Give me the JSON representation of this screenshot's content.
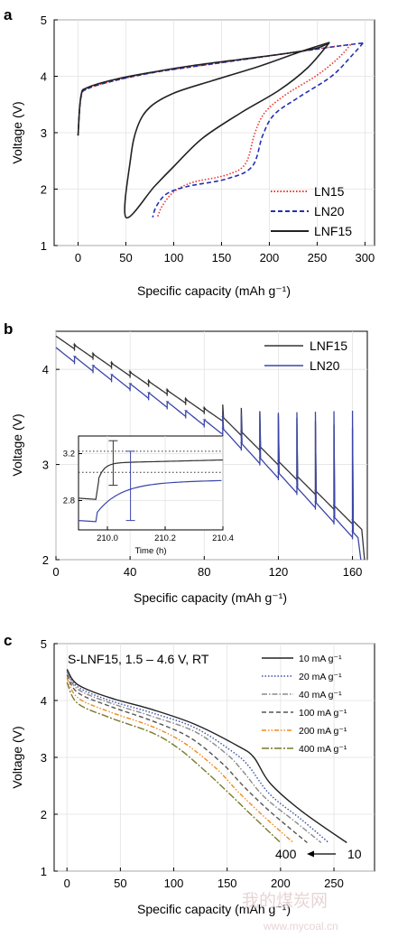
{
  "colors": {
    "LN15": "#e8342f",
    "LN20": "#2530b0",
    "LNF15": "#222222",
    "LN20_b": "#3b46a8",
    "LNF15_b": "#333333",
    "rate_10": "#222222",
    "rate_20": "#3a4fa8",
    "rate_40": "#8a8a8a",
    "rate_100": "#555555",
    "rate_200": "#f08a1d",
    "rate_400": "#7a7a2a"
  },
  "chart_data": [
    {
      "panel": "a",
      "type": "line",
      "xlabel": "Specific capacity (mAh g⁻¹)",
      "ylabel": "Voltage (V)",
      "xlim": [
        -25,
        310
      ],
      "ylim": [
        1,
        5
      ],
      "xticks": [
        "0",
        "50",
        "100",
        "150",
        "200",
        "250",
        "300"
      ],
      "yticks": [
        "1",
        "2",
        "3",
        "4",
        "5"
      ],
      "legend_position": "bottom-right",
      "series": [
        {
          "name": "LN15",
          "style": "dotted",
          "charge": [
            [
              0,
              2.95
            ],
            [
              3,
              3.62
            ],
            [
              10,
              3.78
            ],
            [
              40,
              3.93
            ],
            [
              80,
              4.07
            ],
            [
              120,
              4.17
            ],
            [
              170,
              4.29
            ],
            [
              220,
              4.41
            ],
            [
              265,
              4.52
            ],
            [
              285,
              4.56
            ]
          ],
          "discharge": [
            [
              285,
              4.56
            ],
            [
              272,
              4.32
            ],
            [
              250,
              4.02
            ],
            [
              215,
              3.65
            ],
            [
              195,
              3.35
            ],
            [
              185,
              3.0
            ],
            [
              175,
              2.45
            ],
            [
              155,
              2.25
            ],
            [
              120,
              2.12
            ],
            [
              100,
              1.95
            ],
            [
              88,
              1.7
            ],
            [
              83,
              1.5
            ]
          ]
        },
        {
          "name": "LN20",
          "style": "dashed",
          "charge": [
            [
              0,
              2.95
            ],
            [
              3,
              3.62
            ],
            [
              10,
              3.78
            ],
            [
              40,
              3.93
            ],
            [
              80,
              4.07
            ],
            [
              120,
              4.17
            ],
            [
              170,
              4.29
            ],
            [
              220,
              4.41
            ],
            [
              270,
              4.53
            ],
            [
              298,
              4.59
            ]
          ],
          "discharge": [
            [
              298,
              4.59
            ],
            [
              287,
              4.38
            ],
            [
              265,
              4.0
            ],
            [
              230,
              3.62
            ],
            [
              205,
              3.32
            ],
            [
              193,
              2.95
            ],
            [
              182,
              2.4
            ],
            [
              155,
              2.18
            ],
            [
              115,
              2.05
            ],
            [
              93,
              1.92
            ],
            [
              82,
              1.7
            ],
            [
              78,
              1.5
            ]
          ]
        },
        {
          "name": "LNF15",
          "style": "solid",
          "charge": [
            [
              0,
              2.95
            ],
            [
              3,
              3.65
            ],
            [
              10,
              3.8
            ],
            [
              40,
              3.95
            ],
            [
              80,
              4.08
            ],
            [
              120,
              4.19
            ],
            [
              170,
              4.3
            ],
            [
              220,
              4.41
            ],
            [
              250,
              4.5
            ],
            [
              263,
              4.6
            ]
          ],
          "discharge": [
            [
              263,
              4.6
            ],
            [
              235,
              4.45
            ],
            [
              190,
              4.18
            ],
            [
              140,
              3.92
            ],
            [
              100,
              3.7
            ],
            [
              75,
              3.45
            ],
            [
              62,
              3.1
            ],
            [
              55,
              2.55
            ],
            [
              50,
              1.5
            ],
            [
              80,
              2.05
            ],
            [
              100,
              2.4
            ],
            [
              130,
              2.9
            ],
            [
              170,
              3.35
            ],
            [
              210,
              3.75
            ],
            [
              240,
              4.15
            ],
            [
              263,
              4.6
            ]
          ]
        }
      ]
    },
    {
      "panel": "b",
      "type": "line",
      "xlabel": "Specific capacity (mAh g⁻¹)",
      "ylabel": "Voltage (V)",
      "xlim": [
        0,
        168
      ],
      "ylim": [
        2,
        4.4
      ],
      "xticks": [
        "0",
        "40",
        "80",
        "120",
        "160"
      ],
      "yticks": [
        "2",
        "3",
        "4"
      ],
      "legend_position": "top-right",
      "series": [
        {
          "name": "LNF15",
          "start": [
            0,
            4.35
          ],
          "relax": 0.1
        },
        {
          "name": "LN20",
          "start": [
            0,
            4.22
          ],
          "relax": 0.16
        }
      ],
      "inset": {
        "xlabel": "Time (h)",
        "xticks": [
          "210.0",
          "210.2",
          "210.4"
        ],
        "yticks": [
          "2.8",
          "3.2"
        ],
        "xlim": [
          209.9,
          210.4
        ],
        "ylim": [
          2.55,
          3.35
        ]
      }
    },
    {
      "panel": "c",
      "type": "line",
      "condition": "S-LNF15, 1.5 – 4.6 V, RT",
      "xlabel": "Specific capacity (mAh g⁻¹)",
      "ylabel": "Voltage (V)",
      "xlim": [
        -12,
        288
      ],
      "ylim": [
        1,
        5
      ],
      "xticks": [
        "0",
        "50",
        "100",
        "150",
        "200",
        "250"
      ],
      "yticks": [
        "1",
        "2",
        "3",
        "4",
        "5"
      ],
      "legend_position": "top-right",
      "arrow_labels": {
        "from": "400",
        "to": "10"
      },
      "series": [
        {
          "name": "10 mA g⁻¹",
          "style": "solid",
          "points": [
            [
              0,
              4.55
            ],
            [
              10,
              4.28
            ],
            [
              40,
              4.05
            ],
            [
              80,
              3.84
            ],
            [
              120,
              3.58
            ],
            [
              160,
              3.2
            ],
            [
              175,
              3.0
            ],
            [
              190,
              2.55
            ],
            [
              220,
              2.05
            ],
            [
              262,
              1.5
            ]
          ]
        },
        {
          "name": "20 mA g⁻¹",
          "style": "dotted",
          "points": [
            [
              0,
              4.52
            ],
            [
              10,
              4.24
            ],
            [
              40,
              4.0
            ],
            [
              80,
              3.78
            ],
            [
              120,
              3.52
            ],
            [
              155,
              3.1
            ],
            [
              170,
              2.85
            ],
            [
              190,
              2.35
            ],
            [
              220,
              1.9
            ],
            [
              245,
              1.5
            ]
          ]
        },
        {
          "name": "40 mA g⁻¹",
          "style": "dashdot",
          "points": [
            [
              0,
              4.5
            ],
            [
              10,
              4.2
            ],
            [
              40,
              3.96
            ],
            [
              80,
              3.72
            ],
            [
              120,
              3.45
            ],
            [
              150,
              3.05
            ],
            [
              165,
              2.75
            ],
            [
              185,
              2.3
            ],
            [
              215,
              1.85
            ],
            [
              238,
              1.5
            ]
          ]
        },
        {
          "name": "100 mA g⁻¹",
          "style": "dashed",
          "points": [
            [
              0,
              4.45
            ],
            [
              10,
              4.14
            ],
            [
              40,
              3.9
            ],
            [
              80,
              3.64
            ],
            [
              115,
              3.35
            ],
            [
              145,
              2.9
            ],
            [
              165,
              2.5
            ],
            [
              190,
              2.05
            ],
            [
              225,
              1.5
            ]
          ]
        },
        {
          "name": "200 mA g⁻¹",
          "style": "dashdotdot",
          "points": [
            [
              0,
              4.4
            ],
            [
              10,
              4.05
            ],
            [
              40,
              3.8
            ],
            [
              80,
              3.54
            ],
            [
              110,
              3.25
            ],
            [
              140,
              2.8
            ],
            [
              160,
              2.4
            ],
            [
              185,
              1.95
            ],
            [
              212,
              1.5
            ]
          ]
        },
        {
          "name": "400 mA g⁻¹",
          "style": "dashdotlong",
          "points": [
            [
              0,
              4.32
            ],
            [
              10,
              3.95
            ],
            [
              40,
              3.7
            ],
            [
              80,
              3.43
            ],
            [
              105,
              3.15
            ],
            [
              130,
              2.75
            ],
            [
              150,
              2.4
            ],
            [
              172,
              2.0
            ],
            [
              200,
              1.5
            ]
          ]
        }
      ]
    }
  ],
  "panel_labels": {
    "a": "a",
    "b": "b",
    "c": "c"
  },
  "watermark": {
    "text": "我的煤炭网",
    "url": "www.mycoal.cn"
  }
}
